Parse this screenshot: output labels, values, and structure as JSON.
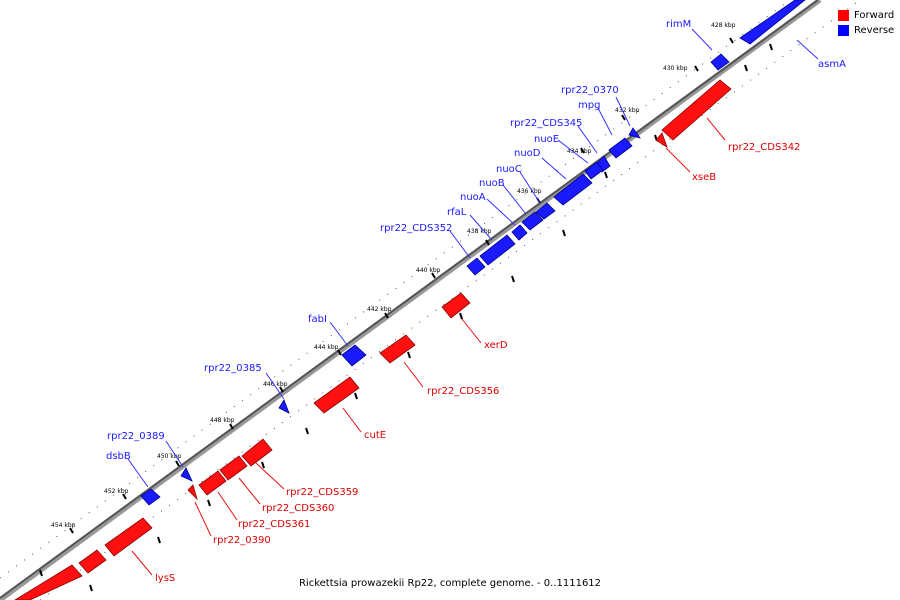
{
  "legend": {
    "forward_label": "Forward",
    "reverse_label": "Reverse",
    "forward_color": "#ff0000",
    "reverse_color": "#0000ff"
  },
  "caption": "Rickettsia prowazekii Rp22, complete genome. - 0..1111612",
  "ticks": [
    "428 kbp",
    "430 kbp",
    "432 kbp",
    "434 kbp",
    "436 kbp",
    "438 kbp",
    "440 kbp",
    "442 kbp",
    "444 kbp",
    "446 kbp",
    "448 kbp",
    "450 kbp",
    "452 kbp",
    "454 kbp"
  ],
  "reverse_genes": [
    "rimM",
    "asmA",
    "rpr22_0370",
    "mpg",
    "rpr22_CDS345",
    "nuoE",
    "nuoD",
    "nuoC",
    "nuoB",
    "nuoA",
    "rfaL",
    "rpr22_CDS352",
    "fabI",
    "rpr22_0385",
    "rpr22_0389",
    "dsbB"
  ],
  "forward_genes": [
    "rpr22_CDS342",
    "xseB",
    "xerD",
    "rpr22_CDS356",
    "cutE",
    "rpr22_CDS359",
    "rpr22_CDS360",
    "rpr22_CDS361",
    "rpr22_0390",
    "lysS"
  ]
}
